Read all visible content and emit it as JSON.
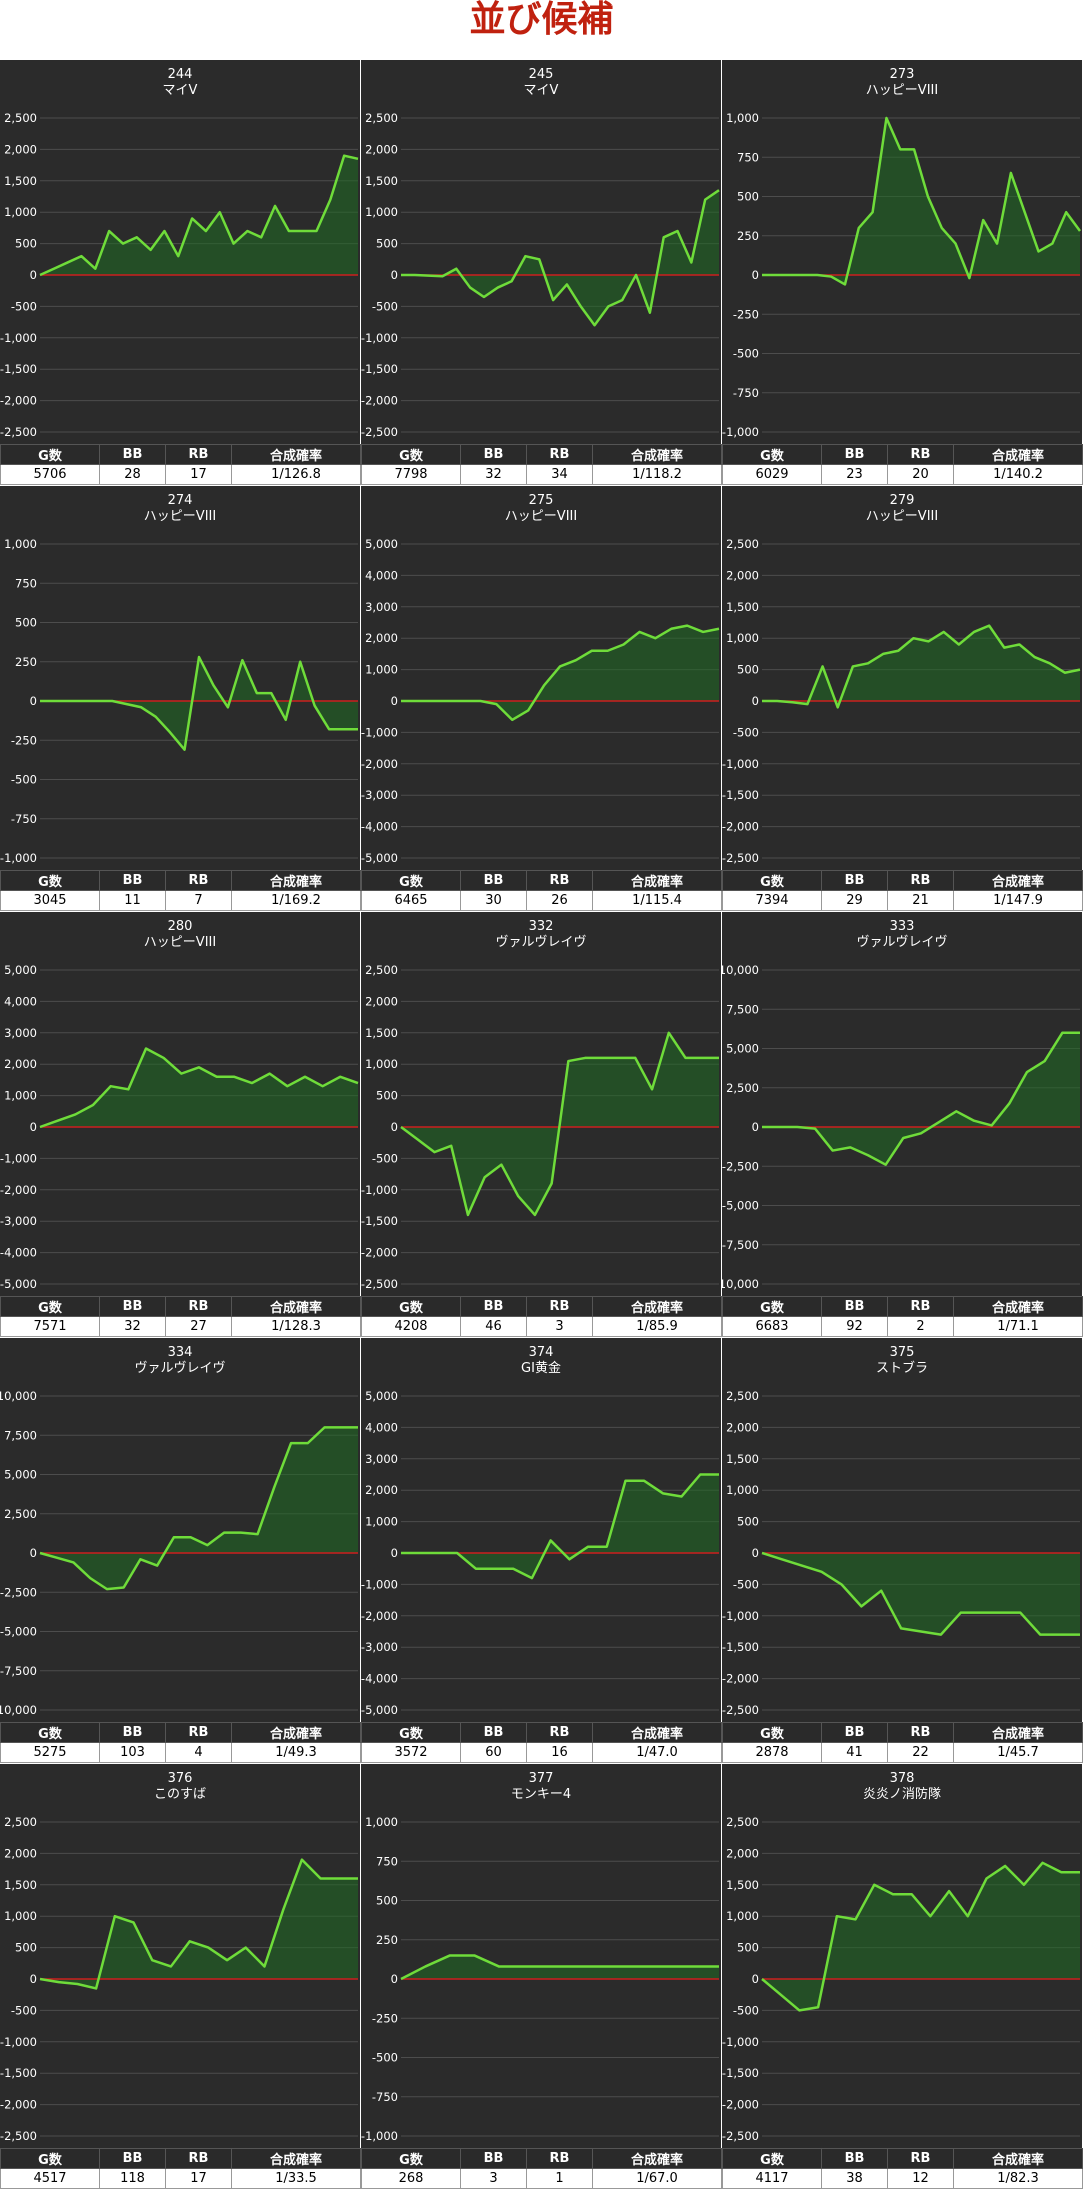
{
  "page": {
    "title": "並び候補"
  },
  "stats_headers": [
    "G数",
    "BB",
    "RB",
    "合成確率"
  ],
  "colors": {
    "background": "#2b2b2b",
    "line": "#6fdc3a",
    "fill": "#1f6b23",
    "zero_line": "#cc1f1f",
    "grid": "#4d4d4d",
    "title": "#c0210f"
  },
  "chart_data": [
    {
      "type": "area",
      "title": "244",
      "subtitle": "マイV",
      "ylim": [
        -2500,
        2500
      ],
      "ticks": [
        2500,
        2000,
        1500,
        1000,
        500,
        0,
        -500,
        -1000,
        -1500,
        -2000,
        -2500
      ],
      "tick_labels": [
        "2,500",
        "2,000",
        "1,500",
        "1,000",
        "500",
        "0",
        "-500",
        "-1,000",
        "-1,500",
        "-2,000",
        "-2,500"
      ],
      "values": [
        0,
        100,
        200,
        300,
        100,
        700,
        500,
        600,
        400,
        700,
        300,
        900,
        700,
        1000,
        500,
        700,
        600,
        1100,
        700,
        700,
        700,
        1200,
        1900,
        1850
      ],
      "stats": {
        "games": "5706",
        "bb": "28",
        "rb": "17",
        "rate": "1/126.8"
      }
    },
    {
      "type": "area",
      "title": "245",
      "subtitle": "マイV",
      "ylim": [
        -2500,
        2500
      ],
      "ticks": [
        2500,
        2000,
        1500,
        1000,
        500,
        0,
        -500,
        -1000,
        -1500,
        -2000,
        -2500
      ],
      "tick_labels": [
        "2,500",
        "2,000",
        "1,500",
        "1,000",
        "500",
        "0",
        "-500",
        "-1,000",
        "-1,500",
        "-2,000",
        "-2,500"
      ],
      "values": [
        0,
        0,
        -10,
        -20,
        100,
        -200,
        -350,
        -200,
        -100,
        300,
        250,
        -400,
        -150,
        -500,
        -800,
        -500,
        -400,
        0,
        -600,
        600,
        700,
        200,
        1200,
        1350
      ],
      "stats": {
        "games": "7798",
        "bb": "32",
        "rb": "34",
        "rate": "1/118.2"
      }
    },
    {
      "type": "area",
      "title": "273",
      "subtitle": "ハッピーVIII",
      "ylim": [
        -1000,
        1000
      ],
      "ticks": [
        1000,
        750,
        500,
        250,
        0,
        -250,
        -500,
        -750,
        -1000
      ],
      "tick_labels": [
        "1,000",
        "750",
        "500",
        "250",
        "0",
        "-250",
        "-500",
        "-750",
        "-1,000"
      ],
      "values": [
        0,
        0,
        0,
        0,
        0,
        -10,
        -60,
        300,
        400,
        1000,
        800,
        800,
        500,
        300,
        200,
        -20,
        350,
        200,
        650,
        400,
        150,
        200,
        400,
        280
      ],
      "stats": {
        "games": "6029",
        "bb": "23",
        "rb": "20",
        "rate": "1/140.2"
      }
    },
    {
      "type": "area",
      "title": "274",
      "subtitle": "ハッピーVIII",
      "ylim": [
        -1000,
        1000
      ],
      "ticks": [
        1000,
        750,
        500,
        250,
        0,
        -250,
        -500,
        -750,
        -1000
      ],
      "tick_labels": [
        "1,000",
        "750",
        "500",
        "250",
        "0",
        "-250",
        "-500",
        "-750",
        "-1,000"
      ],
      "values": [
        0,
        0,
        0,
        0,
        0,
        0,
        -20,
        -40,
        -100,
        -200,
        -310,
        280,
        100,
        -40,
        260,
        50,
        50,
        -120,
        250,
        -30,
        -180,
        -180,
        -180
      ],
      "stats": {
        "games": "3045",
        "bb": "11",
        "rb": "7",
        "rate": "1/169.2"
      }
    },
    {
      "type": "area",
      "title": "275",
      "subtitle": "ハッピーVIII",
      "ylim": [
        -5000,
        5000
      ],
      "ticks": [
        5000,
        4000,
        3000,
        2000,
        1000,
        0,
        -1000,
        -2000,
        -3000,
        -4000,
        -5000
      ],
      "tick_labels": [
        "5,000",
        "4,000",
        "3,000",
        "2,000",
        "1,000",
        "0",
        "-1,000",
        "-2,000",
        "-3,000",
        "-4,000",
        "-5,000"
      ],
      "values": [
        0,
        0,
        0,
        0,
        0,
        0,
        -100,
        -600,
        -300,
        500,
        1100,
        1300,
        1600,
        1600,
        1800,
        2200,
        2000,
        2300,
        2400,
        2200,
        2300
      ],
      "stats": {
        "games": "6465",
        "bb": "30",
        "rb": "26",
        "rate": "1/115.4"
      }
    },
    {
      "type": "area",
      "title": "279",
      "subtitle": "ハッピーVIII",
      "ylim": [
        -2500,
        2500
      ],
      "ticks": [
        2500,
        2000,
        1500,
        1000,
        500,
        0,
        -500,
        -1000,
        -1500,
        -2000,
        -2500
      ],
      "tick_labels": [
        "2,500",
        "2,000",
        "1,500",
        "1,000",
        "500",
        "0",
        "-500",
        "-1,000",
        "-1,500",
        "-2,000",
        "-2,500"
      ],
      "values": [
        0,
        0,
        -20,
        -50,
        550,
        -100,
        550,
        600,
        750,
        800,
        1000,
        950,
        1100,
        900,
        1100,
        1200,
        850,
        900,
        700,
        600,
        450,
        500
      ],
      "stats": {
        "games": "7394",
        "bb": "29",
        "rb": "21",
        "rate": "1/147.9"
      }
    },
    {
      "type": "area",
      "title": "280",
      "subtitle": "ハッピーVIII",
      "ylim": [
        -5000,
        5000
      ],
      "ticks": [
        5000,
        4000,
        3000,
        2000,
        1000,
        0,
        -1000,
        -2000,
        -3000,
        -4000,
        -5000
      ],
      "tick_labels": [
        "5,000",
        "4,000",
        "3,000",
        "2,000",
        "1,000",
        "0",
        "-1,000",
        "-2,000",
        "-3,000",
        "-4,000",
        "-5,000"
      ],
      "values": [
        0,
        200,
        400,
        700,
        1300,
        1200,
        2500,
        2200,
        1700,
        1900,
        1600,
        1600,
        1400,
        1700,
        1300,
        1600,
        1300,
        1600,
        1400
      ],
      "stats": {
        "games": "7571",
        "bb": "32",
        "rb": "27",
        "rate": "1/128.3"
      }
    },
    {
      "type": "area",
      "title": "332",
      "subtitle": "ヴァルヴレイヴ",
      "ylim": [
        -2500,
        2500
      ],
      "ticks": [
        2500,
        2000,
        1500,
        1000,
        500,
        0,
        -500,
        -1000,
        -1500,
        -2000,
        -2500
      ],
      "tick_labels": [
        "2,500",
        "2,000",
        "1,500",
        "1,000",
        "500",
        "0",
        "-500",
        "-1,000",
        "-1,500",
        "-2,000",
        "-2,500"
      ],
      "values": [
        0,
        -200,
        -400,
        -300,
        -1400,
        -800,
        -600,
        -1100,
        -1400,
        -900,
        1050,
        1100,
        1100,
        1100,
        1100,
        600,
        1500,
        1100,
        1100,
        1100
      ],
      "stats": {
        "games": "4208",
        "bb": "46",
        "rb": "3",
        "rate": "1/85.9"
      }
    },
    {
      "type": "area",
      "title": "333",
      "subtitle": "ヴァルヴレイヴ",
      "ylim": [
        -10000,
        10000
      ],
      "ticks": [
        10000,
        7500,
        5000,
        2500,
        0,
        -2500,
        -5000,
        -7500,
        -10000
      ],
      "tick_labels": [
        "10,000",
        "7,500",
        "5,000",
        "2,500",
        "0",
        "-2,500",
        "-5,000",
        "-7,500",
        "-10,000"
      ],
      "values": [
        0,
        0,
        0,
        -100,
        -1500,
        -1300,
        -1800,
        -2400,
        -700,
        -400,
        300,
        1000,
        400,
        100,
        1500,
        3500,
        4200,
        6000,
        6000
      ],
      "stats": {
        "games": "6683",
        "bb": "92",
        "rb": "2",
        "rate": "1/71.1"
      }
    },
    {
      "type": "area",
      "title": "334",
      "subtitle": "ヴァルヴレイヴ",
      "ylim": [
        -10000,
        10000
      ],
      "ticks": [
        10000,
        7500,
        5000,
        2500,
        0,
        -2500,
        -5000,
        -7500,
        -10000
      ],
      "tick_labels": [
        "10,000",
        "7,500",
        "5,000",
        "2,500",
        "0",
        "-2,500",
        "-5,000",
        "-7,500",
        "-10,000"
      ],
      "values": [
        0,
        -300,
        -600,
        -1600,
        -2300,
        -2200,
        -400,
        -800,
        1000,
        1000,
        500,
        1300,
        1300,
        1200,
        4200,
        7000,
        7000,
        8000,
        8000,
        8000
      ],
      "stats": {
        "games": "5275",
        "bb": "103",
        "rb": "4",
        "rate": "1/49.3"
      }
    },
    {
      "type": "area",
      "title": "374",
      "subtitle": "GI黄金",
      "ylim": [
        -5000,
        5000
      ],
      "ticks": [
        5000,
        4000,
        3000,
        2000,
        1000,
        0,
        -1000,
        -2000,
        -3000,
        -4000,
        -5000
      ],
      "tick_labels": [
        "5,000",
        "4,000",
        "3,000",
        "2,000",
        "1,000",
        "0",
        "-1,000",
        "-2,000",
        "-3,000",
        "-4,000",
        "-5,000"
      ],
      "values": [
        0,
        0,
        0,
        0,
        -500,
        -500,
        -500,
        -800,
        400,
        -200,
        200,
        200,
        2300,
        2300,
        1900,
        1800,
        2500,
        2500
      ],
      "stats": {
        "games": "3572",
        "bb": "60",
        "rb": "16",
        "rate": "1/47.0"
      }
    },
    {
      "type": "area",
      "title": "375",
      "subtitle": "ストブラ",
      "ylim": [
        -2500,
        2500
      ],
      "ticks": [
        2500,
        2000,
        1500,
        1000,
        500,
        0,
        -500,
        -1000,
        -1500,
        -2000,
        -2500
      ],
      "tick_labels": [
        "2,500",
        "2,000",
        "1,500",
        "1,000",
        "500",
        "0",
        "-500",
        "-1,000",
        "-1,500",
        "-2,000",
        "-2,500"
      ],
      "values": [
        0,
        -100,
        -200,
        -300,
        -500,
        -850,
        -600,
        -1200,
        -1250,
        -1300,
        -950,
        -950,
        -950,
        -950,
        -1300,
        -1300,
        -1300
      ],
      "stats": {
        "games": "2878",
        "bb": "41",
        "rb": "22",
        "rate": "1/45.7"
      }
    },
    {
      "type": "area",
      "title": "376",
      "subtitle": "このすば",
      "ylim": [
        -2500,
        2500
      ],
      "ticks": [
        2500,
        2000,
        1500,
        1000,
        500,
        0,
        -500,
        -1000,
        -1500,
        -2000,
        -2500
      ],
      "tick_labels": [
        "2,500",
        "2,000",
        "1,500",
        "1,000",
        "500",
        "0",
        "-500",
        "-1,000",
        "-1,500",
        "-2,000",
        "-2,500"
      ],
      "values": [
        0,
        -50,
        -80,
        -150,
        1000,
        900,
        300,
        200,
        600,
        500,
        300,
        500,
        200,
        1100,
        1900,
        1600,
        1600,
        1600
      ],
      "stats": {
        "games": "4517",
        "bb": "118",
        "rb": "17",
        "rate": "1/33.5"
      }
    },
    {
      "type": "area",
      "title": "377",
      "subtitle": "モンキー4",
      "ylim": [
        -1000,
        1000
      ],
      "ticks": [
        1000,
        750,
        500,
        250,
        0,
        -250,
        -500,
        -750,
        -1000
      ],
      "tick_labels": [
        "1,000",
        "750",
        "500",
        "250",
        "0",
        "-250",
        "-500",
        "-750",
        "-1,000"
      ],
      "values": [
        0,
        80,
        150,
        150,
        80,
        80,
        80,
        80,
        80,
        80,
        80,
        80,
        80,
        80
      ],
      "stats": {
        "games": "268",
        "bb": "3",
        "rb": "1",
        "rate": "1/67.0"
      }
    },
    {
      "type": "area",
      "title": "378",
      "subtitle": "炎炎ノ消防隊",
      "ylim": [
        -2500,
        2500
      ],
      "ticks": [
        2500,
        2000,
        1500,
        1000,
        500,
        0,
        -500,
        -1000,
        -1500,
        -2000,
        -2500
      ],
      "tick_labels": [
        "2,500",
        "2,000",
        "1,500",
        "1,000",
        "500",
        "0",
        "-500",
        "-1,000",
        "-1,500",
        "-2,000",
        "-2,500"
      ],
      "values": [
        0,
        -250,
        -500,
        -450,
        1000,
        950,
        1500,
        1350,
        1350,
        1000,
        1400,
        1000,
        1600,
        1800,
        1500,
        1850,
        1700,
        1700
      ],
      "stats": {
        "games": "4117",
        "bb": "38",
        "rb": "12",
        "rate": "1/82.3"
      }
    }
  ]
}
